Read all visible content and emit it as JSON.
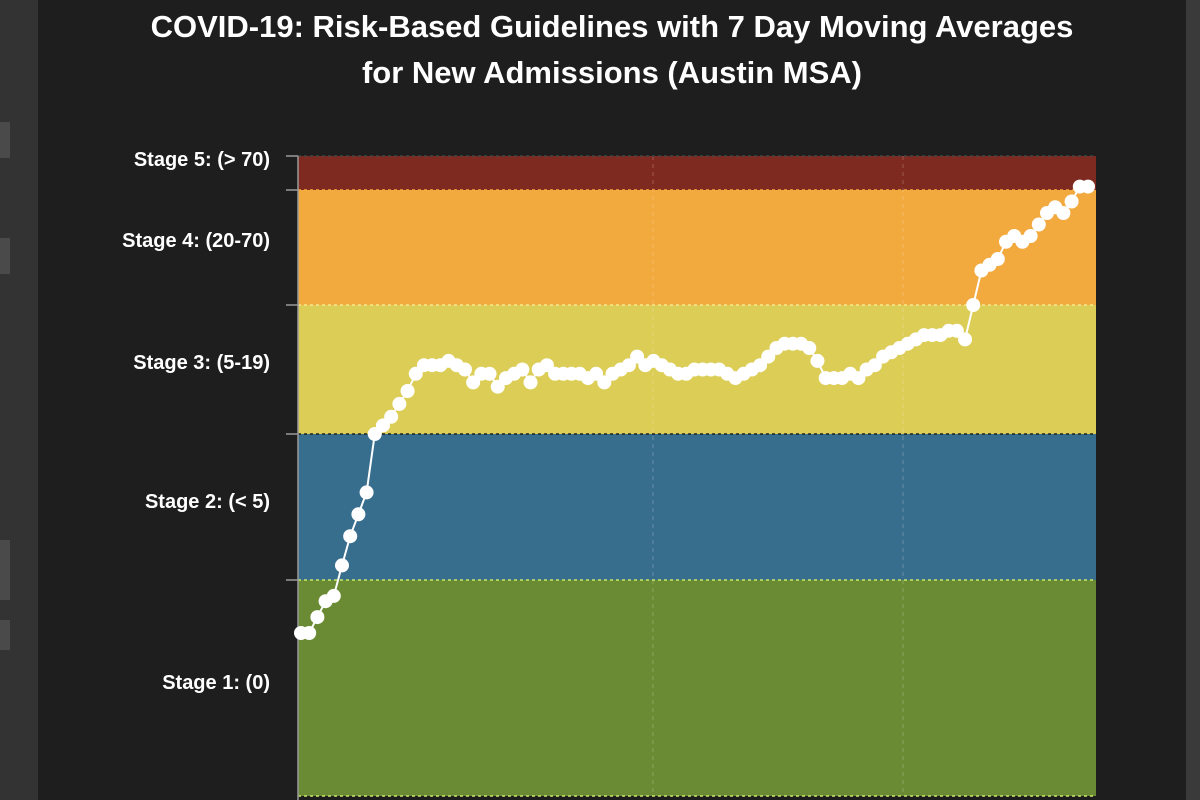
{
  "title_line1": "COVID-19: Risk-Based Guidelines with 7 Day Moving Averages",
  "title_line2": "for New Admissions (Austin MSA)",
  "chart_data": {
    "type": "line",
    "title": "COVID-19: Risk-Based Guidelines with 7 Day Moving Averages for New Admissions (Austin MSA)",
    "xlabel": "",
    "ylabel": "",
    "grid": true,
    "stages": [
      {
        "label": "Stage 5: (> 70)",
        "color": "#7f2a20"
      },
      {
        "label": "Stage 4: (20-70)",
        "color": "#f2a93e"
      },
      {
        "label": "Stage 3: (5-19)",
        "color": "#dccd56"
      },
      {
        "label": "Stage 2: (< 5)",
        "color": "#386e8d"
      },
      {
        "label": "Stage 1: (0)",
        "color": "#6a8b33"
      }
    ],
    "series": [
      {
        "color": "#ffffff",
        "values": [
          0.0,
          0.0,
          0.3,
          0.6,
          0.7,
          1.2,
          1.6,
          1.9,
          2.2,
          3.0,
          3.2,
          3.4,
          3.7,
          4.0,
          4.4,
          4.6,
          4.6,
          4.6,
          4.7,
          4.6,
          4.5,
          4.2,
          4.4,
          4.4,
          4.1,
          4.3,
          4.4,
          4.5,
          4.2,
          4.5,
          4.6,
          4.4,
          4.4,
          4.4,
          4.4,
          4.3,
          4.4,
          4.2,
          4.4,
          4.5,
          4.6,
          4.8,
          4.6,
          4.7,
          4.6,
          4.5,
          4.4,
          4.4,
          4.5,
          4.5,
          4.5,
          4.5,
          4.4,
          4.3,
          4.4,
          4.5,
          4.6,
          4.8,
          5.0,
          5.1,
          5.1,
          5.1,
          5.0,
          4.7,
          4.3,
          4.3,
          4.3,
          4.4,
          4.3,
          4.5,
          4.6,
          4.8,
          4.9,
          5.0,
          5.1,
          5.2,
          5.3,
          5.3,
          5.3,
          5.4,
          5.4,
          5.2,
          6.0,
          6.6,
          6.7,
          6.8,
          7.1,
          7.2,
          7.1,
          7.2,
          7.4,
          7.6,
          7.7,
          7.6,
          7.8,
          8.1,
          8.1
        ]
      }
    ]
  }
}
